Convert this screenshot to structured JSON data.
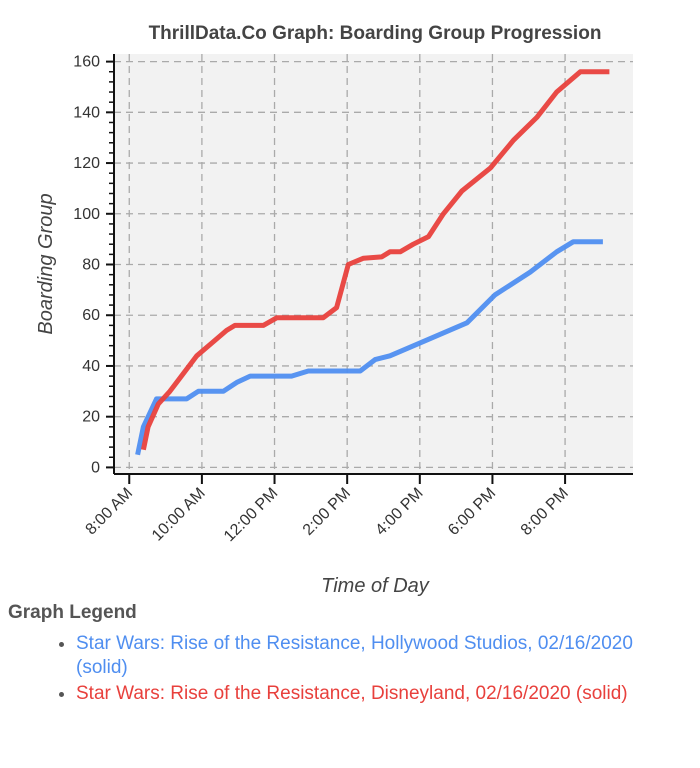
{
  "chart_data": {
    "type": "line",
    "title": "ThrillData.Co Graph: Boarding Group Progression",
    "xlabel": "Time of Day",
    "ylabel": "Boarding Group",
    "x_unit": "hour of day (decimal, 24h)",
    "xlim": [
      7.58,
      21.87
    ],
    "ylim": [
      -2.6,
      163
    ],
    "grid": true,
    "xticks": [
      {
        "value": 8,
        "label": "8:00 AM"
      },
      {
        "value": 10,
        "label": "10:00 AM"
      },
      {
        "value": 12,
        "label": "12:00 PM"
      },
      {
        "value": 14,
        "label": "2:00 PM"
      },
      {
        "value": 16,
        "label": "4:00 PM"
      },
      {
        "value": 18,
        "label": "6:00 PM"
      },
      {
        "value": 20,
        "label": "8:00 PM"
      }
    ],
    "yticks": [
      0,
      20,
      40,
      60,
      80,
      100,
      120,
      140,
      160
    ],
    "series": [
      {
        "name": "Star Wars: Rise of the Resistance, Hollywood Studios, 02/16/2020 (solid)",
        "color": "#4f8ef0",
        "x": [
          8.23,
          8.39,
          8.75,
          9.58,
          9.9,
          10.59,
          10.96,
          11.33,
          12.47,
          12.93,
          14.36,
          14.77,
          15.18,
          16.0,
          17.3,
          18.07,
          19.04,
          19.77,
          20.23,
          21.04
        ],
        "y": [
          5,
          16,
          27,
          27,
          30,
          30,
          33.5,
          36,
          36,
          38,
          38,
          42.5,
          44,
          49,
          57,
          68,
          77,
          85,
          89,
          89
        ]
      },
      {
        "name": "Star Wars: Rise of the Resistance, Disneyland, 02/16/2020 (solid)",
        "color": "#e8403c",
        "x": [
          8.39,
          8.52,
          8.8,
          9.12,
          9.86,
          10.27,
          10.68,
          10.91,
          11.69,
          12.06,
          13.34,
          13.71,
          14.03,
          14.45,
          14.95,
          15.18,
          15.46,
          15.82,
          16.24,
          16.65,
          17.16,
          17.94,
          18.58,
          19.22,
          19.77,
          20.42,
          21.22
        ],
        "y": [
          7,
          16,
          25,
          30,
          44,
          49,
          54,
          56,
          56,
          59,
          59,
          63,
          80,
          82.5,
          83,
          85,
          85,
          88,
          91,
          100,
          109,
          118,
          129,
          138,
          148,
          156,
          156
        ]
      }
    ]
  },
  "legend": {
    "title": "Graph Legend"
  }
}
